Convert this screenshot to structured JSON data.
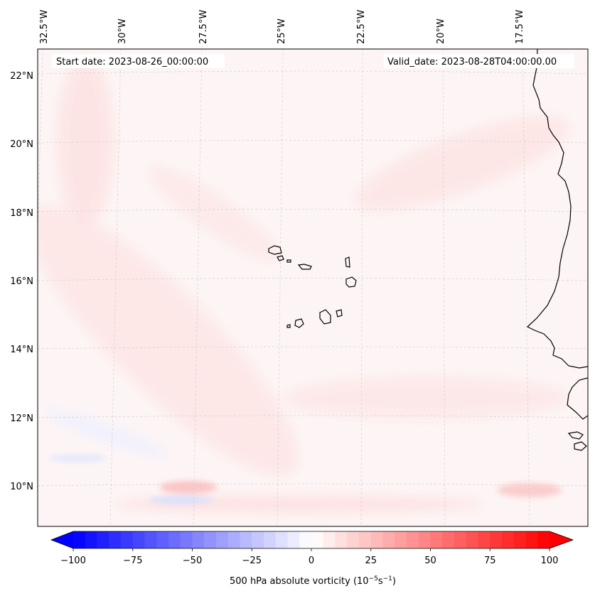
{
  "header": {
    "start_date": "Start date: 2023-08-26_00:00:00",
    "valid_date": "Valid_date: 2023-08-28T04:00:00.00"
  },
  "map": {
    "lon_labels": [
      "32.5°W",
      "30°W",
      "27.5°W",
      "25°W",
      "22.5°W",
      "20°W",
      "17.5°W"
    ],
    "lat_labels": [
      "22°N",
      "20°N",
      "18°N",
      "16°N",
      "14°N",
      "12°N",
      "10°N"
    ],
    "background_color": "#fdf5f5",
    "land_outline_color": "#000000",
    "gridline_color": "#c9c9c9"
  },
  "colorbar": {
    "tick_labels": [
      "−100",
      "−75",
      "−50",
      "−25",
      "0",
      "25",
      "50",
      "75",
      "100"
    ],
    "ticks": [
      -100,
      -75,
      -50,
      -25,
      0,
      25,
      50,
      75,
      100
    ],
    "range": [
      -100,
      100
    ],
    "step": 5,
    "low_color": "#0000ff",
    "mid_color": "#ffffff",
    "high_color": "#ff0000",
    "label": "500 hPa absolute vorticity (10",
    "label_exp1": "−5",
    "label_mid": "s",
    "label_exp2": "−1",
    "label_end": ")"
  }
}
